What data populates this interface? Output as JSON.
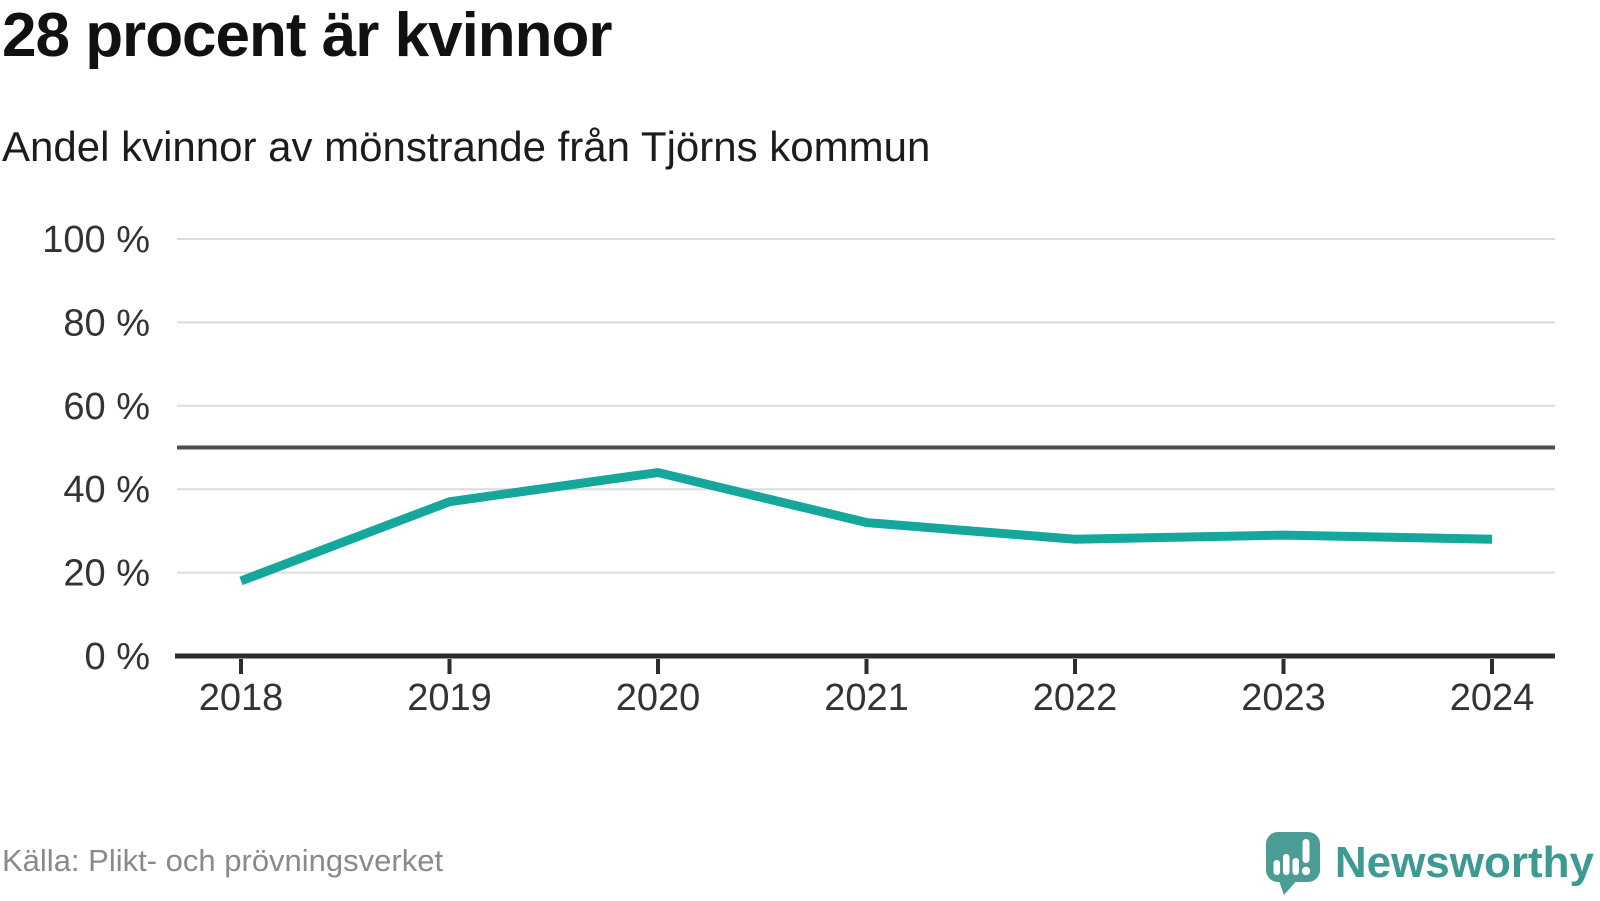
{
  "header": {
    "title": "28 procent är kvinnor",
    "subtitle": "Andel kvinnor av mönstrande från Tjörns kommun"
  },
  "chart_data": {
    "type": "line",
    "x": [
      2018,
      2019,
      2020,
      2021,
      2022,
      2023,
      2024
    ],
    "series": [
      {
        "name": "Andel kvinnor",
        "values": [
          18,
          37,
          44,
          32,
          28,
          29,
          28
        ]
      }
    ],
    "title": "28 procent är kvinnor",
    "subtitle": "Andel kvinnor av mönstrande från Tjörns kommun",
    "ylim": [
      0,
      100
    ],
    "yticks": [
      0,
      20,
      40,
      60,
      80,
      100
    ],
    "ytick_format": "{v} %",
    "reference_line": 50,
    "grid": true,
    "legend_position": "none",
    "line_color": "#15a79b"
  },
  "footer": {
    "source": "Källa: Plikt- och prövningsverket",
    "brand": "Newsworthy"
  },
  "colors": {
    "accent_teal": "#15a79b",
    "logo_teal": "#4a9c94",
    "brand_text": "#3b9a91",
    "grid": "#dcdcdc",
    "reference_line": "#4d4d4d",
    "axis": "#2d2d2d",
    "tick_label": "#333333",
    "source_text": "#8a8a8a"
  }
}
